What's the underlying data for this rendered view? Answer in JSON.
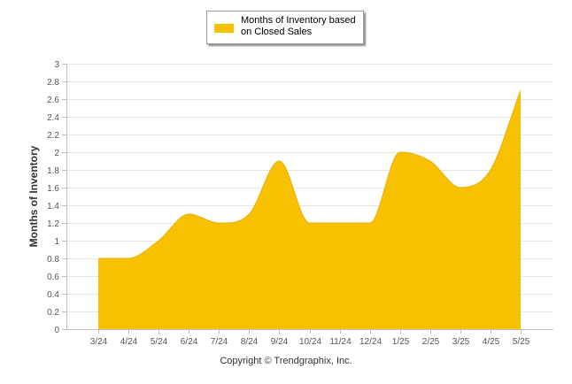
{
  "chart_data": {
    "type": "area",
    "title": "",
    "xlabel": "",
    "ylabel": "Months of Inventory",
    "categories": [
      "3/24",
      "4/24",
      "5/24",
      "6/24",
      "7/24",
      "8/24",
      "9/24",
      "10/24",
      "11/24",
      "12/24",
      "1/25",
      "2/25",
      "3/25",
      "4/25",
      "5/25"
    ],
    "series": [
      {
        "name": "Months of Inventory based on Closed Sales",
        "values": [
          0.8,
          0.8,
          1.0,
          1.3,
          1.2,
          1.3,
          1.9,
          1.2,
          1.2,
          1.2,
          2.0,
          1.9,
          1.6,
          1.8,
          2.7
        ],
        "color": "#f7c000"
      }
    ],
    "ylim": [
      0,
      3
    ],
    "yticks": [
      "0",
      "0.2",
      "0.4",
      "0.6",
      "0.8",
      "1",
      "1.2",
      "1.4",
      "1.6",
      "1.8",
      "2",
      "2.2",
      "2.4",
      "2.6",
      "2.8",
      "3"
    ],
    "grid": true,
    "legend_position": "top-center"
  },
  "legend": {
    "label": "Months of Inventory based on Closed Sales"
  },
  "footer": {
    "copyright": "Copyright © Trendgraphix, Inc."
  }
}
